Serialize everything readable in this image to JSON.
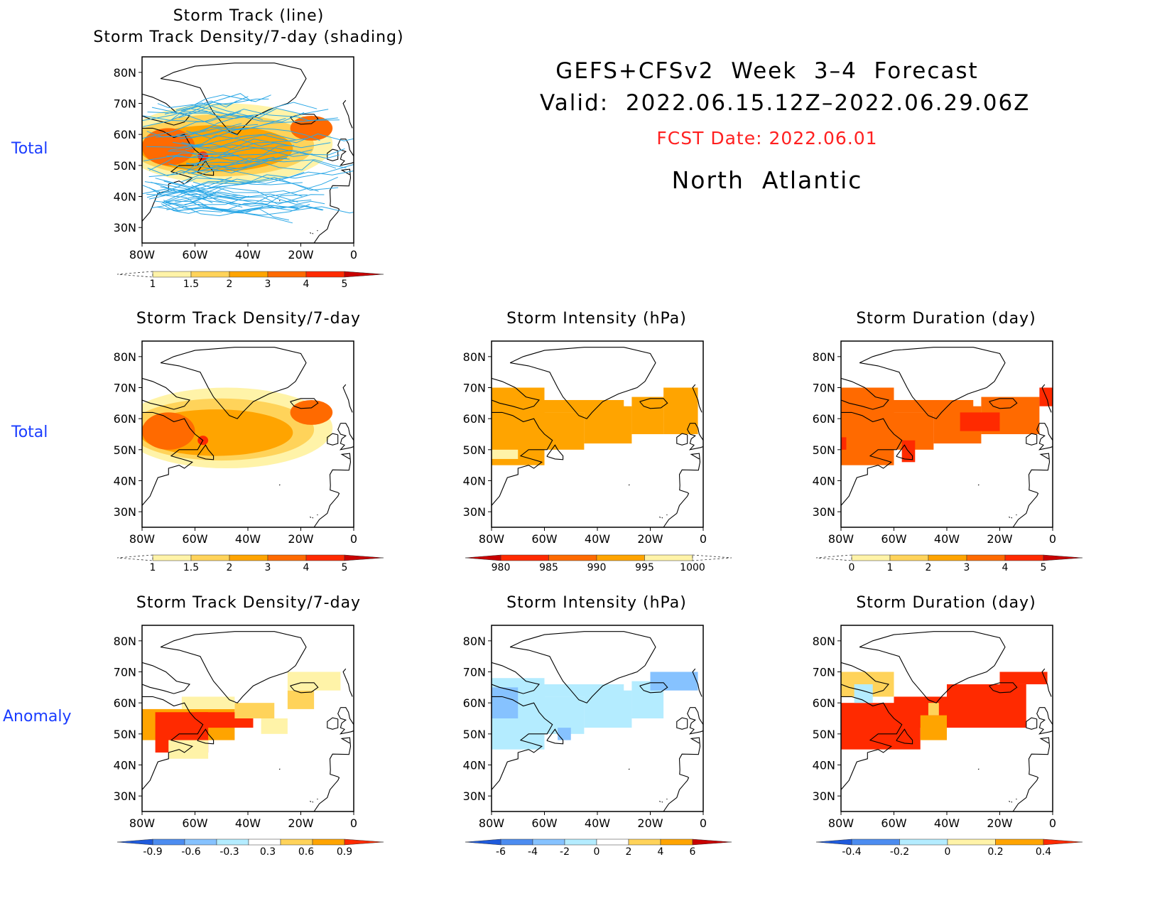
{
  "header": {
    "line1": "GEFS+CFSv2  Week  3–4  Forecast",
    "line2": "Valid:  2022.06.15.12Z–2022.06.29.06Z",
    "fcst": "FCST Date: 2022.06.01",
    "region": "North  Atlantic",
    "fcst_color": "#ff2020"
  },
  "row_labels": {
    "total1": "Total",
    "total2": "Total",
    "anomaly": "Anomaly"
  },
  "axes": {
    "lat_ticks": [
      "80N",
      "70N",
      "60N",
      "50N",
      "40N",
      "30N"
    ],
    "lon_ticks": [
      "80W",
      "60W",
      "40W",
      "20W",
      "0"
    ]
  },
  "panels": {
    "p1": {
      "title1": "Storm Track (line)",
      "title2": "Storm Track Density/7-day (shading)",
      "colorbar": [
        "1",
        "1.5",
        "2",
        "3",
        "4",
        "5"
      ]
    },
    "p2": {
      "title": "Storm Track Density/7-day",
      "colorbar": [
        "1",
        "1.5",
        "2",
        "3",
        "4",
        "5"
      ]
    },
    "p3": {
      "title": "Storm Intensity (hPa)",
      "colorbar": [
        "980",
        "985",
        "990",
        "995",
        "1000"
      ]
    },
    "p4": {
      "title": "Storm Duration (day)",
      "colorbar": [
        "0",
        "1",
        "2",
        "3",
        "4",
        "5"
      ]
    },
    "p5": {
      "title": "Storm Track Density/7-day",
      "colorbar": [
        "-0.9",
        "-0.6",
        "-0.3",
        "0.3",
        "0.6",
        "0.9"
      ]
    },
    "p6": {
      "title": "Storm Intensity (hPa)",
      "colorbar": [
        "-6",
        "-4",
        "-2",
        "0",
        "2",
        "4",
        "6"
      ]
    },
    "p7": {
      "title": "Storm Duration (day)",
      "colorbar": [
        "-0.4",
        "-0.2",
        "0",
        "0.2",
        "0.4"
      ]
    }
  },
  "colors": {
    "track_line": "#2aa7e6",
    "land_outline": "#000000",
    "warm": [
      "#fff3a8",
      "#ffd35a",
      "#ffa400",
      "#ff6a00",
      "#ff2a00",
      "#c80000"
    ],
    "cool": [
      "#1e5adc",
      "#4c8cf0",
      "#86c2ff",
      "#b4ecff"
    ]
  }
}
